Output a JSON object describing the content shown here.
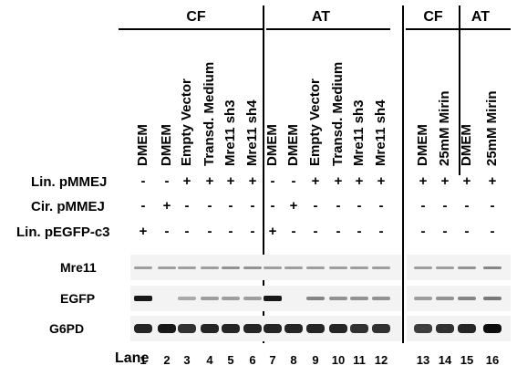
{
  "groups": [
    {
      "label": "CF"
    },
    {
      "label": "AT"
    },
    {
      "label": "CF"
    },
    {
      "label": "AT"
    }
  ],
  "conditions": [
    "DMEM",
    "DMEM",
    "Empty Vector",
    "Transd. Medium",
    "Mre11 sh3",
    "Mre11 sh4",
    "DMEM",
    "DMEM",
    "Empty Vector",
    "Transd. Medium",
    "Mre11 sh3",
    "Mre11 sh4",
    "DMEM",
    "25mM Mirin",
    "DMEM",
    "25mM Mirin"
  ],
  "rows": [
    {
      "label": "Lin. pMMEJ",
      "signs": [
        "-",
        "-",
        "+",
        "+",
        "+",
        "+",
        "-",
        "-",
        "+",
        "+",
        "+",
        "+",
        "+",
        "+",
        "+",
        "+"
      ]
    },
    {
      "label": "Cir. pMMEJ",
      "signs": [
        "-",
        "+",
        "-",
        "-",
        "-",
        "-",
        "-",
        "+",
        "-",
        "-",
        "-",
        "-",
        "-",
        "-",
        "-",
        "-"
      ]
    },
    {
      "label": "Lin. pEGFP-c3",
      "signs": [
        "+",
        "-",
        "-",
        "-",
        "-",
        "-",
        "+",
        "-",
        "-",
        "-",
        "-",
        "-",
        "-",
        "-",
        "-",
        "-"
      ]
    }
  ],
  "blots": [
    {
      "label": "Mre11",
      "intensity": [
        0.35,
        0.35,
        0.35,
        0.35,
        0.4,
        0.4,
        0.35,
        0.35,
        0.35,
        0.35,
        0.35,
        0.35,
        0.35,
        0.35,
        0.4,
        0.45
      ]
    },
    {
      "label": "EGFP",
      "intensity": [
        0.9,
        0.0,
        0.3,
        0.35,
        0.35,
        0.35,
        0.9,
        0.0,
        0.45,
        0.4,
        0.4,
        0.4,
        0.35,
        0.4,
        0.45,
        0.5
      ]
    },
    {
      "label": "G6PD",
      "intensity": [
        0.85,
        0.9,
        0.8,
        0.85,
        0.85,
        0.85,
        0.85,
        0.85,
        0.85,
        0.85,
        0.8,
        0.8,
        0.75,
        0.8,
        0.85,
        0.95
      ]
    }
  ],
  "lane": {
    "title": "Lane",
    "numbers": [
      "1",
      "2",
      "3",
      "4",
      "5",
      "6",
      "7",
      "8",
      "9",
      "10",
      "11",
      "12",
      "13",
      "14",
      "15",
      "16"
    ]
  }
}
